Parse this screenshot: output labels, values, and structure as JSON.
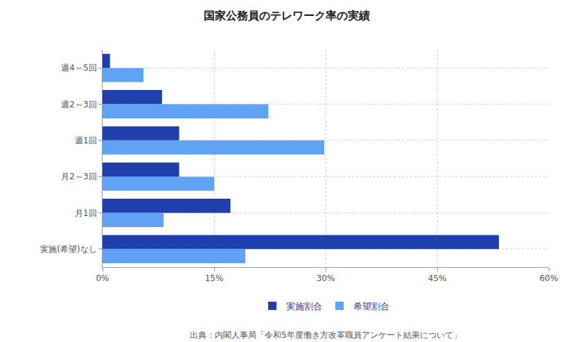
{
  "chart_data": {
    "type": "bar",
    "orientation": "horizontal",
    "title": "国家公務員のテレワーク率の実績",
    "caption": "出典：内閣人事局「令和5年度働き方改革職員アンケート結果について」",
    "categories": [
      "週4～5回",
      "週2～3回",
      "週1回",
      "月2～3回",
      "月1回",
      "実施(希望)なし"
    ],
    "series": [
      {
        "name": "実施割合",
        "color": "#1f3fad",
        "values": [
          1.0,
          8.0,
          10.3,
          10.3,
          17.2,
          53.3
        ]
      },
      {
        "name": "希望割合",
        "color": "#5fa2f6",
        "values": [
          5.5,
          22.3,
          29.8,
          15.0,
          8.2,
          19.2
        ]
      }
    ],
    "xlim": [
      0,
      60
    ],
    "xticks": [
      {
        "value": 0,
        "label": "0%"
      },
      {
        "value": 15,
        "label": "15%"
      },
      {
        "value": 30,
        "label": "30%"
      },
      {
        "value": 45,
        "label": "45%"
      },
      {
        "value": 60,
        "label": "60%"
      }
    ],
    "grid": true,
    "legend": "bottom"
  }
}
